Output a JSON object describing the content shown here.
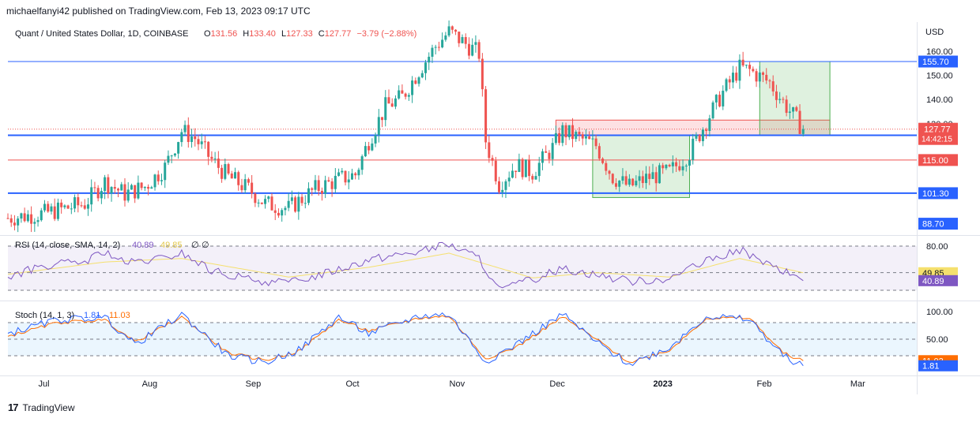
{
  "header": {
    "publisher": "michaelfanyi42 published on TradingView.com, Feb 13, 2023 09:17 UTC"
  },
  "footer": {
    "brand": "TradingView"
  },
  "chart_data": [
    {
      "type": "candlestick",
      "symbol": "Quant / United States Dollar, 1D, COINBASE",
      "ohlc_legend": {
        "open_label": "O",
        "open": "131.56",
        "high_label": "H",
        "high": "133.40",
        "low_label": "L",
        "low": "127.33",
        "close_label": "C",
        "close": "127.77",
        "change": "−3.79 (−2.88%)"
      },
      "currency": "USD",
      "yticks": [
        "160.00",
        "150.00",
        "140.00",
        "130.00"
      ],
      "ylim": [
        84,
        172
      ],
      "xticks": [
        "Jul",
        "Aug",
        "Sep",
        "Oct",
        "Nov",
        "Dec",
        "2023",
        "Feb",
        "Mar"
      ],
      "last_price": {
        "value": "127.77",
        "countdown": "14:42:15",
        "color": "#ef5350"
      },
      "levels": [
        {
          "value": "155.70",
          "numeric": 155.7,
          "color": "#2962ff",
          "style": "thin"
        },
        {
          "value": "125.25",
          "numeric": 125.25,
          "color": "#2962ff",
          "style": "thick"
        },
        {
          "value": "115.00",
          "numeric": 115.0,
          "color": "#ef5350",
          "style": "thin"
        },
        {
          "value": "101.30",
          "numeric": 101.3,
          "color": "#2962ff",
          "style": "thick"
        },
        {
          "value": "88.70",
          "numeric": 88.7,
          "color": "#2962ff",
          "style": "label-only"
        }
      ],
      "zones": [
        {
          "kind": "red",
          "x_start": "2022-12-01",
          "x_end": "2023-02-21",
          "y_low": 125.25,
          "y_high": 131.5
        },
        {
          "kind": "green",
          "x_start": "2022-12-12",
          "x_end": "2023-01-10",
          "y_low": 99.5,
          "y_high": 125.25
        },
        {
          "kind": "green",
          "x_start": "2023-01-31",
          "x_end": "2023-02-21",
          "y_low": 125.25,
          "y_high": 155.7
        }
      ],
      "close_path": [
        {
          "date": "2022-06-20",
          "close": 91
        },
        {
          "date": "2022-07-01",
          "close": 93
        },
        {
          "date": "2022-07-13",
          "close": 97
        },
        {
          "date": "2022-07-19",
          "close": 106
        },
        {
          "date": "2022-07-25",
          "close": 101
        },
        {
          "date": "2022-07-31",
          "close": 104
        },
        {
          "date": "2022-08-06",
          "close": 112
        },
        {
          "date": "2022-08-11",
          "close": 127
        },
        {
          "date": "2022-08-15",
          "close": 124
        },
        {
          "date": "2022-08-20",
          "close": 115
        },
        {
          "date": "2022-08-25",
          "close": 108
        },
        {
          "date": "2022-08-31",
          "close": 103
        },
        {
          "date": "2022-09-05",
          "close": 97
        },
        {
          "date": "2022-09-12",
          "close": 95
        },
        {
          "date": "2022-09-20",
          "close": 103
        },
        {
          "date": "2022-09-27",
          "close": 107
        },
        {
          "date": "2022-10-02",
          "close": 109
        },
        {
          "date": "2022-10-06",
          "close": 123
        },
        {
          "date": "2022-10-11",
          "close": 137
        },
        {
          "date": "2022-10-16",
          "close": 141
        },
        {
          "date": "2022-10-21",
          "close": 152
        },
        {
          "date": "2022-10-26",
          "close": 162
        },
        {
          "date": "2022-10-30",
          "close": 168
        },
        {
          "date": "2022-11-03",
          "close": 164
        },
        {
          "date": "2022-11-08",
          "close": 159
        },
        {
          "date": "2022-11-10",
          "close": 123
        },
        {
          "date": "2022-11-14",
          "close": 105
        },
        {
          "date": "2022-11-19",
          "close": 113
        },
        {
          "date": "2022-11-24",
          "close": 110
        },
        {
          "date": "2022-11-30",
          "close": 120
        },
        {
          "date": "2022-12-03",
          "close": 127
        },
        {
          "date": "2022-12-08",
          "close": 124
        },
        {
          "date": "2022-12-13",
          "close": 121
        },
        {
          "date": "2022-12-18",
          "close": 108
        },
        {
          "date": "2022-12-23",
          "close": 104
        },
        {
          "date": "2022-12-29",
          "close": 108
        },
        {
          "date": "2023-01-04",
          "close": 110
        },
        {
          "date": "2023-01-10",
          "close": 118
        },
        {
          "date": "2023-01-15",
          "close": 131
        },
        {
          "date": "2023-01-20",
          "close": 143
        },
        {
          "date": "2023-01-25",
          "close": 153
        },
        {
          "date": "2023-01-28",
          "close": 152
        },
        {
          "date": "2023-02-03",
          "close": 147
        },
        {
          "date": "2023-02-07",
          "close": 139
        },
        {
          "date": "2023-02-13",
          "close": 127.77
        }
      ]
    },
    {
      "type": "line",
      "title": "RSI (14, close, SMA, 14, 2)",
      "legend_values": [
        "40.89",
        "49.85",
        "∅",
        "∅"
      ],
      "levels": [
        80,
        50,
        30
      ],
      "yticks": [
        "80.00"
      ],
      "ylim": [
        22,
        88
      ],
      "labels": [
        {
          "value": "49.85",
          "numeric": 49.85,
          "color": "#f5e06e"
        },
        {
          "value": "40.89",
          "numeric": 40.89,
          "color": "#7e57c2"
        }
      ],
      "series": [
        {
          "name": "RSI",
          "color": "#7e57c2",
          "points": [
            {
              "date": "2022-06-20",
              "value": 45
            },
            {
              "date": "2022-07-01",
              "value": 58
            },
            {
              "date": "2022-07-13",
              "value": 62
            },
            {
              "date": "2022-07-19",
              "value": 74
            },
            {
              "date": "2022-07-25",
              "value": 60
            },
            {
              "date": "2022-08-06",
              "value": 66
            },
            {
              "date": "2022-08-11",
              "value": 72
            },
            {
              "date": "2022-08-20",
              "value": 52
            },
            {
              "date": "2022-08-31",
              "value": 42
            },
            {
              "date": "2022-09-12",
              "value": 38
            },
            {
              "date": "2022-09-27",
              "value": 54
            },
            {
              "date": "2022-10-06",
              "value": 65
            },
            {
              "date": "2022-10-21",
              "value": 74
            },
            {
              "date": "2022-10-30",
              "value": 82
            },
            {
              "date": "2022-11-08",
              "value": 66
            },
            {
              "date": "2022-11-14",
              "value": 30
            },
            {
              "date": "2022-11-24",
              "value": 42
            },
            {
              "date": "2022-12-03",
              "value": 55
            },
            {
              "date": "2022-12-13",
              "value": 48
            },
            {
              "date": "2022-12-23",
              "value": 40
            },
            {
              "date": "2023-01-04",
              "value": 44
            },
            {
              "date": "2023-01-15",
              "value": 62
            },
            {
              "date": "2023-01-25",
              "value": 76
            },
            {
              "date": "2023-02-03",
              "value": 58
            },
            {
              "date": "2023-02-13",
              "value": 40.89
            }
          ]
        },
        {
          "name": "RSI-based MA",
          "color": "#f5e06e",
          "points": [
            {
              "date": "2022-06-20",
              "value": 48
            },
            {
              "date": "2022-07-19",
              "value": 62
            },
            {
              "date": "2022-08-11",
              "value": 66
            },
            {
              "date": "2022-09-12",
              "value": 45
            },
            {
              "date": "2022-10-06",
              "value": 56
            },
            {
              "date": "2022-10-30",
              "value": 72
            },
            {
              "date": "2022-11-24",
              "value": 44
            },
            {
              "date": "2022-12-13",
              "value": 50
            },
            {
              "date": "2023-01-04",
              "value": 45
            },
            {
              "date": "2023-01-25",
              "value": 66
            },
            {
              "date": "2023-02-13",
              "value": 49.85
            }
          ]
        }
      ]
    },
    {
      "type": "line",
      "title": "Stoch (14, 1, 3)",
      "legend_values": [
        "1.81",
        "11.03"
      ],
      "levels": [
        80,
        50,
        20
      ],
      "yticks": [
        "100.00",
        "50.00"
      ],
      "ylim": [
        -10,
        110
      ],
      "labels": [
        {
          "value": "11.03",
          "numeric": 11.03,
          "color": "#ff6d00"
        },
        {
          "value": "1.81",
          "numeric": 1.81,
          "color": "#2962ff"
        }
      ],
      "series": [
        {
          "name": "%K",
          "color": "#2962ff",
          "points": [
            {
              "date": "2022-06-20",
              "value": 60
            },
            {
              "date": "2022-07-05",
              "value": 85
            },
            {
              "date": "2022-07-19",
              "value": 90
            },
            {
              "date": "2022-07-28",
              "value": 40
            },
            {
              "date": "2022-08-11",
              "value": 95
            },
            {
              "date": "2022-08-25",
              "value": 20
            },
            {
              "date": "2022-09-05",
              "value": 8
            },
            {
              "date": "2022-09-15",
              "value": 30
            },
            {
              "date": "2022-09-27",
              "value": 90
            },
            {
              "date": "2022-10-06",
              "value": 60
            },
            {
              "date": "2022-10-21",
              "value": 92
            },
            {
              "date": "2022-10-30",
              "value": 95
            },
            {
              "date": "2022-11-10",
              "value": 10
            },
            {
              "date": "2022-11-19",
              "value": 40
            },
            {
              "date": "2022-12-03",
              "value": 95
            },
            {
              "date": "2022-12-13",
              "value": 45
            },
            {
              "date": "2022-12-23",
              "value": 5
            },
            {
              "date": "2023-01-04",
              "value": 35
            },
            {
              "date": "2023-01-15",
              "value": 92
            },
            {
              "date": "2023-01-28",
              "value": 85
            },
            {
              "date": "2023-02-07",
              "value": 20
            },
            {
              "date": "2023-02-13",
              "value": 1.81
            }
          ]
        },
        {
          "name": "%D",
          "color": "#ff6d00",
          "points": [
            {
              "date": "2022-06-20",
              "value": 55
            },
            {
              "date": "2022-07-05",
              "value": 80
            },
            {
              "date": "2022-07-19",
              "value": 85
            },
            {
              "date": "2022-07-28",
              "value": 45
            },
            {
              "date": "2022-08-11",
              "value": 90
            },
            {
              "date": "2022-08-25",
              "value": 25
            },
            {
              "date": "2022-09-05",
              "value": 12
            },
            {
              "date": "2022-09-15",
              "value": 28
            },
            {
              "date": "2022-09-27",
              "value": 85
            },
            {
              "date": "2022-10-06",
              "value": 65
            },
            {
              "date": "2022-10-21",
              "value": 88
            },
            {
              "date": "2022-10-30",
              "value": 92
            },
            {
              "date": "2022-11-10",
              "value": 15
            },
            {
              "date": "2022-11-19",
              "value": 35
            },
            {
              "date": "2022-12-03",
              "value": 90
            },
            {
              "date": "2022-12-13",
              "value": 50
            },
            {
              "date": "2022-12-23",
              "value": 8
            },
            {
              "date": "2023-01-04",
              "value": 30
            },
            {
              "date": "2023-01-15",
              "value": 88
            },
            {
              "date": "2023-01-28",
              "value": 88
            },
            {
              "date": "2023-02-07",
              "value": 25
            },
            {
              "date": "2023-02-13",
              "value": 11.03
            }
          ]
        }
      ]
    }
  ]
}
